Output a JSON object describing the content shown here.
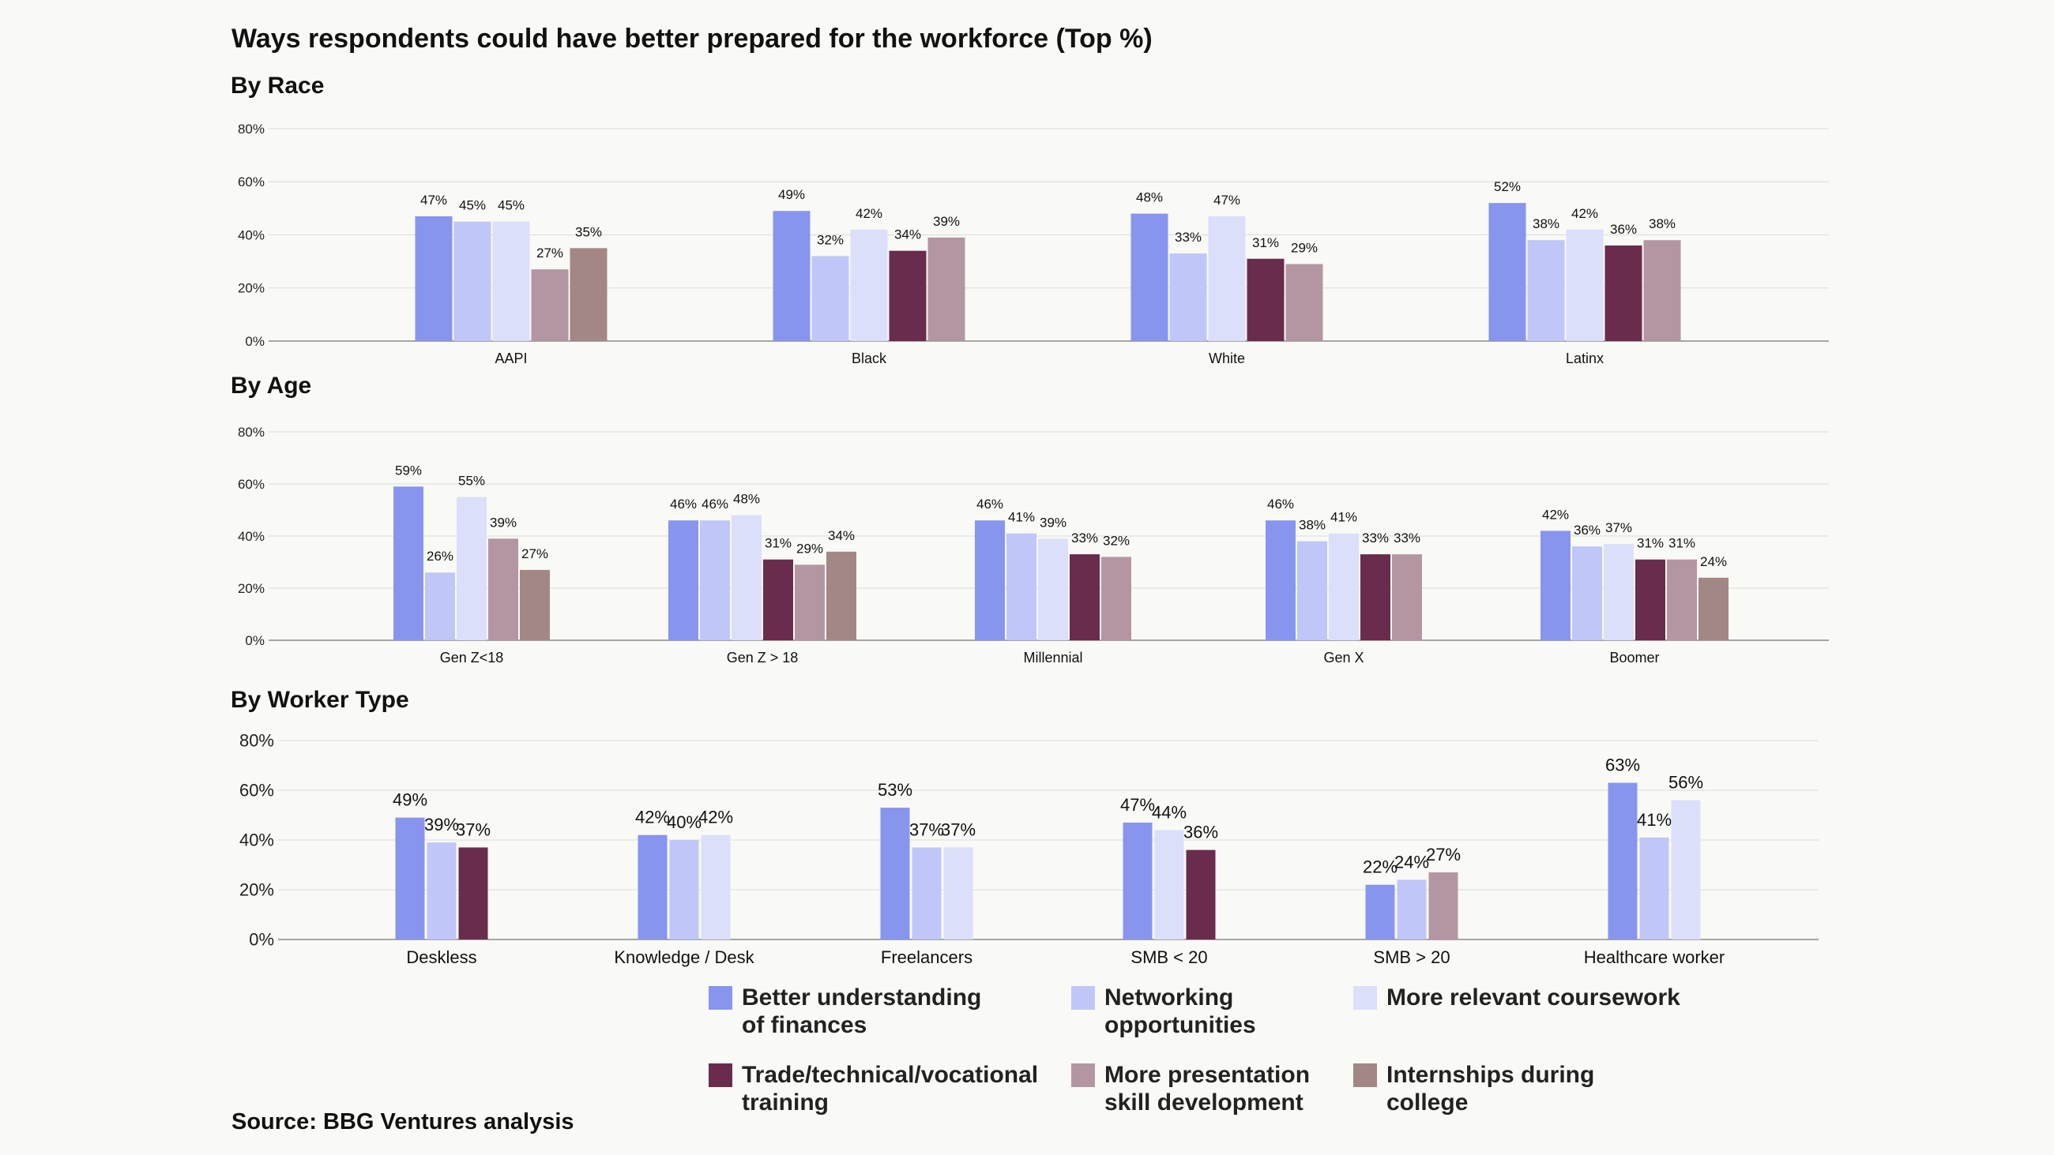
{
  "title": "Ways respondents could have better prepared for the workforce (Top %)",
  "source": "Source: BBG Ventures analysis",
  "colors": [
    "#8895ee",
    "#c0c6f8",
    "#dcdffa",
    "#6a2c4c",
    "#b496a3",
    "#a38784"
  ],
  "legend": [
    {
      "label": "Better understanding\nof finances",
      "color": "#8895ee"
    },
    {
      "label": "Networking\nopportunities",
      "color": "#c0c6f8"
    },
    {
      "label": "More relevant coursework",
      "color": "#dcdffa"
    },
    {
      "label": "Trade/technical/vocational\ntraining",
      "color": "#6a2c4c"
    },
    {
      "label": "More presentation\nskill development",
      "color": "#b496a3"
    },
    {
      "label": "Internships during\ncollege",
      "color": "#a38784"
    }
  ],
  "chart_data": [
    {
      "type": "bar",
      "title": "By Race",
      "categories": [
        "AAPI",
        "Black",
        "White",
        "Latinx"
      ],
      "ylim": [
        0,
        80
      ],
      "yticks": [
        "0%",
        "20%",
        "40%",
        "60%",
        "80%"
      ],
      "series": [
        {
          "name": "Better understanding of finances",
          "values": [
            47,
            49,
            48,
            52
          ]
        },
        {
          "name": "Networking opportunities",
          "values": [
            45,
            32,
            33,
            38
          ]
        },
        {
          "name": "More relevant coursework",
          "values": [
            45,
            42,
            47,
            42
          ]
        },
        {
          "name": "Trade/technical/vocational training",
          "values": [
            null,
            34,
            31,
            36
          ]
        },
        {
          "name": "More presentation skill development",
          "values": [
            27,
            39,
            29,
            38
          ]
        },
        {
          "name": "Internships during college",
          "values": [
            35,
            null,
            null,
            null
          ]
        }
      ]
    },
    {
      "type": "bar",
      "title": "By Age",
      "categories": [
        "Gen Z<18",
        "Gen Z > 18",
        "Millennial",
        "Gen X",
        "Boomer"
      ],
      "ylim": [
        0,
        80
      ],
      "yticks": [
        "0%",
        "20%",
        "40%",
        "60%",
        "80%"
      ],
      "series": [
        {
          "name": "Better understanding of finances",
          "values": [
            59,
            46,
            46,
            46,
            42
          ]
        },
        {
          "name": "Networking opportunities",
          "values": [
            26,
            46,
            41,
            38,
            36
          ]
        },
        {
          "name": "More relevant coursework",
          "values": [
            55,
            48,
            39,
            41,
            37
          ]
        },
        {
          "name": "Trade/technical/vocational training",
          "values": [
            null,
            31,
            33,
            33,
            31
          ]
        },
        {
          "name": "More presentation skill development",
          "values": [
            39,
            29,
            32,
            33,
            31
          ]
        },
        {
          "name": "Internships during college",
          "values": [
            27,
            34,
            null,
            null,
            24
          ]
        }
      ]
    },
    {
      "type": "bar",
      "title": "By Worker Type",
      "categories": [
        "Deskless",
        "Knowledge / Desk",
        "Freelancers",
        "SMB < 20",
        "SMB > 20",
        "Healthcare worker"
      ],
      "ylim": [
        0,
        80
      ],
      "yticks": [
        "0%",
        "20%",
        "40%",
        "60%",
        "80%"
      ],
      "series": [
        {
          "name": "Better understanding of finances",
          "values": [
            49,
            42,
            53,
            47,
            22,
            63
          ]
        },
        {
          "name": "Networking opportunities",
          "values": [
            39,
            40,
            37,
            null,
            24,
            41
          ]
        },
        {
          "name": "More relevant coursework",
          "values": [
            null,
            42,
            37,
            44,
            null,
            56
          ]
        },
        {
          "name": "Trade/technical/vocational training",
          "values": [
            37,
            null,
            null,
            36,
            null,
            null
          ]
        },
        {
          "name": "More presentation skill development",
          "values": [
            null,
            null,
            null,
            null,
            27,
            null
          ]
        },
        {
          "name": "Internships during college",
          "values": [
            null,
            null,
            null,
            null,
            null,
            null
          ]
        }
      ]
    }
  ]
}
